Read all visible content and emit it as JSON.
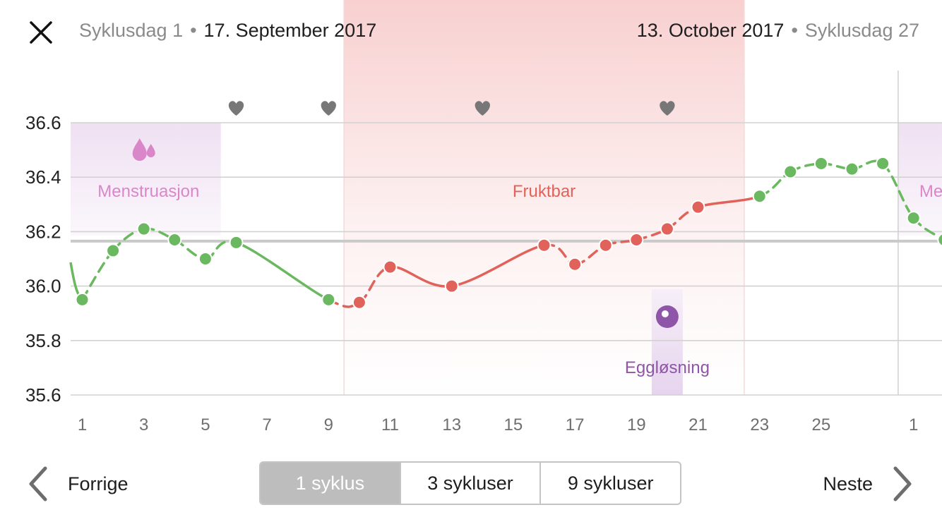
{
  "header": {
    "start_cycle_day": "Syklusdag 1",
    "start_date": "17. September 2017",
    "end_date": "13. October 2017",
    "end_cycle_day": "Syklusdag 27",
    "close_icon": "close-icon"
  },
  "chart_data": {
    "type": "line",
    "ylim": [
      35.6,
      36.6
    ],
    "yticks": [
      "36.6",
      "36.4",
      "36.2",
      "36.0",
      "35.8",
      "35.6"
    ],
    "xticks": [
      "1",
      "3",
      "5",
      "7",
      "9",
      "11",
      "13",
      "15",
      "17",
      "19",
      "21",
      "23",
      "25",
      "1"
    ],
    "coverline": 36.165,
    "points": [
      {
        "day": 1,
        "temp": 35.95,
        "phase": "green"
      },
      {
        "day": 2,
        "temp": 36.13,
        "phase": "green"
      },
      {
        "day": 3,
        "temp": 36.21,
        "phase": "green"
      },
      {
        "day": 4,
        "temp": 36.17,
        "phase": "green"
      },
      {
        "day": 5,
        "temp": 36.1,
        "phase": "green"
      },
      {
        "day": 6,
        "temp": 36.16,
        "phase": "green"
      },
      {
        "day": 9,
        "temp": 35.95,
        "phase": "green"
      },
      {
        "day": 10,
        "temp": 35.94,
        "phase": "red"
      },
      {
        "day": 11,
        "temp": 36.07,
        "phase": "red"
      },
      {
        "day": 13,
        "temp": 36.0,
        "phase": "red"
      },
      {
        "day": 16,
        "temp": 36.15,
        "phase": "red"
      },
      {
        "day": 17,
        "temp": 36.08,
        "phase": "red"
      },
      {
        "day": 18,
        "temp": 36.15,
        "phase": "red"
      },
      {
        "day": 19,
        "temp": 36.17,
        "phase": "red"
      },
      {
        "day": 20,
        "temp": 36.21,
        "phase": "red"
      },
      {
        "day": 21,
        "temp": 36.29,
        "phase": "red"
      },
      {
        "day": 23,
        "temp": 36.33,
        "phase": "green"
      },
      {
        "day": 24,
        "temp": 36.42,
        "phase": "green"
      },
      {
        "day": 25,
        "temp": 36.45,
        "phase": "green"
      },
      {
        "day": 26,
        "temp": 36.43,
        "phase": "green"
      },
      {
        "day": 27,
        "temp": 36.45,
        "phase": "green"
      },
      {
        "day": 28,
        "temp": 36.25,
        "phase": "green"
      },
      {
        "day": 29,
        "temp": 36.17,
        "phase": "green"
      }
    ],
    "hearts": [
      6,
      9,
      14,
      20
    ],
    "menstruation": {
      "label": "Menstruasjon",
      "start_day": 1,
      "end_day": 5,
      "icon": "blood-drops-icon"
    },
    "menstruation_next": {
      "label": "Me",
      "start_day": 28
    },
    "fertile": {
      "label": "Fruktbar",
      "start_day": 10,
      "end_day": 22
    },
    "ovulation": {
      "label": "Eggløsning",
      "day": 20,
      "icon": "ovulation-icon"
    },
    "colors": {
      "green": "#6ab85f",
      "red": "#e0625a",
      "menstruation": "#d987c9",
      "ovulation": "#8e55a8",
      "heart": "#777777",
      "grid": "#d2d2d2",
      "coverline": "#c9c9c9"
    }
  },
  "footer": {
    "prev_label": "Forrige",
    "next_label": "Neste",
    "segments": [
      "1 syklus",
      "3 sykluser",
      "9 sykluser"
    ],
    "active_segment": "1 syklus"
  }
}
